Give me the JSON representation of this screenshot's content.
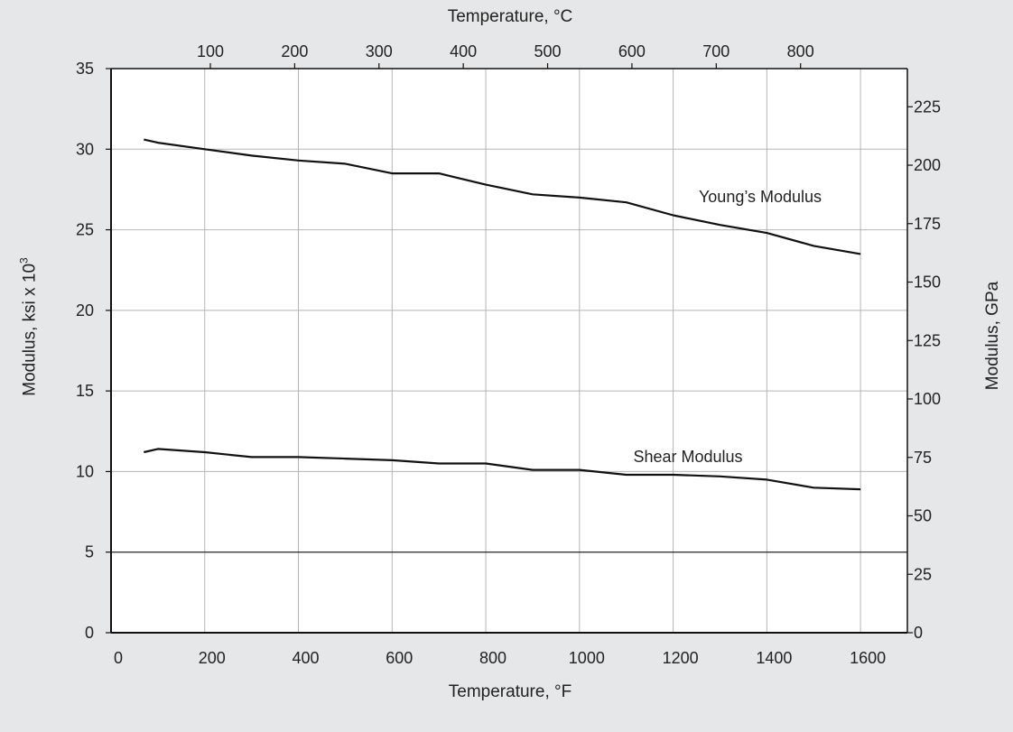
{
  "chart_data": {
    "type": "line",
    "x_axis_bottom": {
      "label": "Temperature, °F",
      "range": [
        0,
        1700
      ],
      "ticks": [
        0,
        200,
        400,
        600,
        800,
        1000,
        1200,
        1400,
        1600
      ]
    },
    "x_axis_top": {
      "label": "Temperature, °C",
      "ticks": [
        100,
        200,
        300,
        400,
        500,
        600,
        700,
        800
      ]
    },
    "y_axis_left": {
      "label_main": "Modulus, ksi x 10",
      "label_sup": "3",
      "range": [
        0,
        35
      ],
      "ticks": [
        0,
        5,
        10,
        15,
        20,
        25,
        30,
        35
      ]
    },
    "y_axis_right": {
      "label": "Modulus, GPa",
      "ticks": [
        0,
        25,
        50,
        75,
        100,
        125,
        150,
        175,
        200,
        225
      ]
    },
    "grid": true,
    "series": [
      {
        "name": "Young’s Modulus",
        "x": [
          70,
          100,
          200,
          300,
          400,
          500,
          600,
          700,
          800,
          900,
          1000,
          1100,
          1200,
          1300,
          1400,
          1500,
          1600
        ],
        "values": [
          30.6,
          30.4,
          30.0,
          29.6,
          29.3,
          29.1,
          28.5,
          28.5,
          27.8,
          27.2,
          27.0,
          26.7,
          25.9,
          25.3,
          24.8,
          24.0,
          23.5
        ]
      },
      {
        "name": "Shear Modulus",
        "x": [
          70,
          100,
          200,
          300,
          400,
          500,
          600,
          700,
          800,
          900,
          1000,
          1100,
          1200,
          1300,
          1400,
          1500,
          1600
        ],
        "values": [
          11.2,
          11.4,
          11.2,
          10.9,
          10.9,
          10.8,
          10.7,
          10.5,
          10.5,
          10.1,
          10.1,
          9.8,
          9.8,
          9.7,
          9.5,
          9.0,
          8.9
        ]
      }
    ],
    "colors": {
      "background": "#e6e7e8",
      "plot": "#ffffff",
      "line": "#111111",
      "grid": "#b5b5b5"
    }
  }
}
